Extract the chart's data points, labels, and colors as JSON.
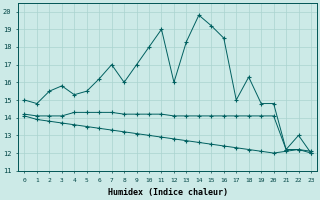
{
  "xlabel": "Humidex (Indice chaleur)",
  "background_color": "#cceae7",
  "grid_color": "#aad4d0",
  "line_color": "#006060",
  "xlim": [
    -0.5,
    23.5
  ],
  "ylim": [
    11,
    20.5
  ],
  "yticks": [
    11,
    12,
    13,
    14,
    15,
    16,
    17,
    18,
    19,
    20
  ],
  "xticks": [
    0,
    1,
    2,
    3,
    4,
    5,
    6,
    7,
    8,
    9,
    10,
    11,
    12,
    13,
    14,
    15,
    16,
    17,
    18,
    19,
    20,
    21,
    22,
    23
  ],
  "series1_x": [
    0,
    1,
    2,
    3,
    4,
    5,
    6,
    7,
    8,
    9,
    10,
    11,
    12,
    13,
    14,
    15,
    16,
    17,
    18,
    19,
    20,
    21,
    22,
    23
  ],
  "series1_y": [
    15.0,
    14.8,
    15.5,
    15.8,
    15.3,
    15.5,
    16.2,
    17.0,
    16.0,
    17.0,
    18.0,
    19.0,
    16.0,
    18.3,
    19.8,
    19.2,
    18.5,
    15.0,
    16.3,
    14.8,
    14.8,
    12.2,
    13.0,
    12.0
  ],
  "series2_x": [
    0,
    1,
    2,
    3,
    4,
    5,
    6,
    7,
    8,
    9,
    10,
    11,
    12,
    13,
    14,
    15,
    16,
    17,
    18,
    19,
    20,
    21,
    22,
    23
  ],
  "series2_y": [
    14.2,
    14.1,
    14.1,
    14.1,
    14.3,
    14.3,
    14.3,
    14.3,
    14.2,
    14.2,
    14.2,
    14.2,
    14.1,
    14.1,
    14.1,
    14.1,
    14.1,
    14.1,
    14.1,
    14.1,
    14.1,
    12.2,
    12.2,
    12.1
  ],
  "series3_x": [
    0,
    1,
    2,
    3,
    4,
    5,
    6,
    7,
    8,
    9,
    10,
    11,
    12,
    13,
    14,
    15,
    16,
    17,
    18,
    19,
    20,
    21,
    22,
    23
  ],
  "series3_y": [
    14.1,
    13.9,
    13.8,
    13.7,
    13.6,
    13.5,
    13.4,
    13.3,
    13.2,
    13.1,
    13.0,
    12.9,
    12.8,
    12.7,
    12.6,
    12.5,
    12.4,
    12.3,
    12.2,
    12.1,
    12.0,
    12.1,
    12.2,
    12.0
  ]
}
